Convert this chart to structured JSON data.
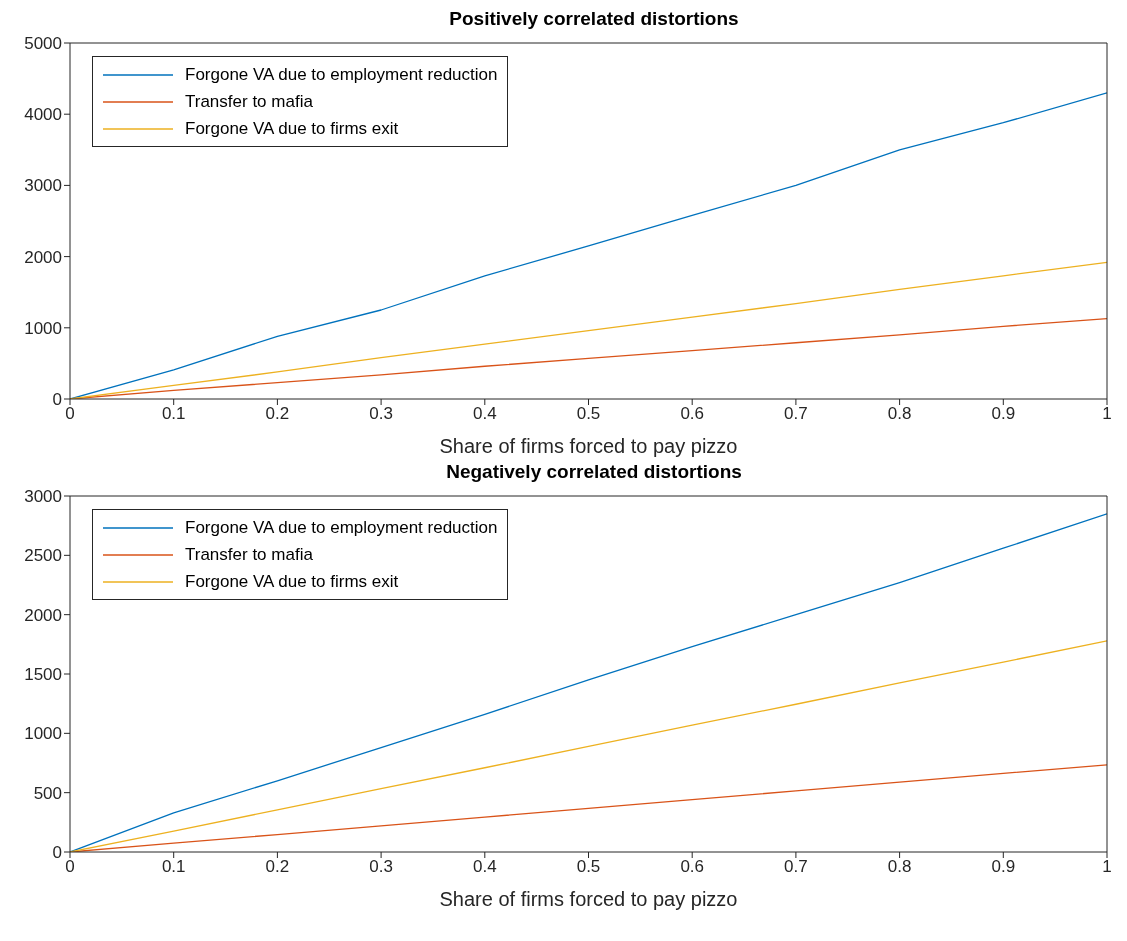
{
  "chart_data": [
    {
      "type": "line",
      "title": "Positively correlated distortions",
      "xlabel": "Share of firms forced to pay pizzo",
      "x": [
        0,
        0.1,
        0.2,
        0.3,
        0.4,
        0.5,
        0.6,
        0.7,
        0.8,
        0.9,
        1
      ],
      "series": [
        {
          "name": "Forgone VA due to employment reduction",
          "color": "#0072bd",
          "values": [
            0,
            410,
            880,
            1250,
            1730,
            2150,
            2580,
            3000,
            3500,
            3880,
            4300
          ]
        },
        {
          "name": "Transfer to mafia",
          "color": "#d95319",
          "values": [
            0,
            120,
            230,
            340,
            460,
            570,
            680,
            790,
            900,
            1020,
            1130
          ]
        },
        {
          "name": "Forgone VA due to firms exit",
          "color": "#edb120",
          "values": [
            0,
            190,
            380,
            580,
            770,
            960,
            1150,
            1340,
            1540,
            1730,
            1920
          ]
        }
      ],
      "xlim": [
        0,
        1
      ],
      "xticks": [
        0,
        0.1,
        0.2,
        0.3,
        0.4,
        0.5,
        0.6,
        0.7,
        0.8,
        0.9,
        1
      ],
      "ylim": [
        0,
        5000
      ],
      "yticks": [
        0,
        1000,
        2000,
        3000,
        4000,
        5000
      ],
      "grid": false,
      "legend": "top left",
      "line_style": "solid"
    },
    {
      "type": "line",
      "title": "Negatively correlated distortions",
      "xlabel": "Share of firms forced to pay pizzo",
      "x": [
        0,
        0.1,
        0.2,
        0.3,
        0.4,
        0.5,
        0.6,
        0.7,
        0.8,
        0.9,
        1
      ],
      "series": [
        {
          "name": "Forgone VA due to employment reduction",
          "color": "#0072bd",
          "values": [
            0,
            330,
            600,
            880,
            1160,
            1450,
            1730,
            2000,
            2270,
            2560,
            2850
          ]
        },
        {
          "name": "Transfer to mafia",
          "color": "#d95319",
          "values": [
            0,
            74,
            147,
            221,
            294,
            368,
            441,
            515,
            588,
            662,
            735
          ]
        },
        {
          "name": "Forgone VA due to firms exit",
          "color": "#edb120",
          "values": [
            0,
            175,
            355,
            535,
            710,
            890,
            1070,
            1245,
            1425,
            1600,
            1780
          ]
        }
      ],
      "xlim": [
        0,
        1
      ],
      "xticks": [
        0,
        0.1,
        0.2,
        0.3,
        0.4,
        0.5,
        0.6,
        0.7,
        0.8,
        0.9,
        1
      ],
      "ylim": [
        0,
        3000
      ],
      "yticks": [
        0,
        500,
        1000,
        1500,
        2000,
        2500,
        3000
      ],
      "grid": false,
      "legend": "top left",
      "line_style": "solid"
    }
  ]
}
